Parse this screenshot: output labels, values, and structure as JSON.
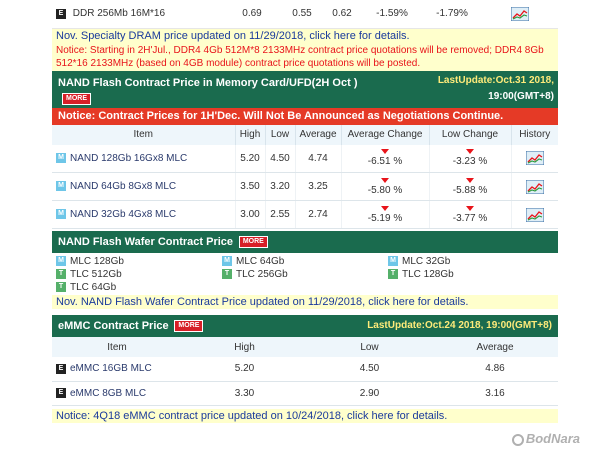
{
  "ddr_row": {
    "tag": "E",
    "name": "DDR 256Mb 16M*16",
    "high": "0.69",
    "low": "0.55",
    "average": "0.62",
    "avg_change": "-1.59%",
    "low_change": "-1.79%"
  },
  "specialty_notice": "Nov. Specialty DRAM price updated on 11/29/2018, click here for details.",
  "ddr4_notice": "Notice: Starting in 2H'Jul., DDR4 4Gb 512M*8 2133MHz contract price quotations will be removed; DDR4 8Gb 512*16 2133MHz (based on 4GB module) contract price quotations will be posted.",
  "nand_card": {
    "title": "NAND Flash Contract Price in Memory Card/UFD(2H Oct )",
    "more": "MORE",
    "last_update": "LastUpdate:Oct.31 2018,",
    "last_update_time": "19:00(GMT+8)",
    "red_notice": "Notice: Contract Prices for 1H'Dec. Will Not Be Announced as Negotiations Continue.",
    "headers": {
      "item": "Item",
      "high": "High",
      "low": "Low",
      "average": "Average",
      "avg_change": "Average Change",
      "low_change": "Low Change",
      "history": "History"
    },
    "rows": [
      {
        "tag": "M",
        "name": "NAND 128Gb 16Gx8 MLC",
        "high": "5.20",
        "low": "4.50",
        "average": "4.74",
        "avg_change": "-6.51 %",
        "low_change": "-3.23 %"
      },
      {
        "tag": "M",
        "name": "NAND 64Gb 8Gx8 MLC",
        "high": "3.50",
        "low": "3.20",
        "average": "3.25",
        "avg_change": "-5.80 %",
        "low_change": "-5.88 %"
      },
      {
        "tag": "M",
        "name": "NAND 32Gb 4Gx8 MLC",
        "high": "3.00",
        "low": "2.55",
        "average": "2.74",
        "avg_change": "-5.19 %",
        "low_change": "-3.77 %"
      }
    ]
  },
  "wafer": {
    "title": "NAND Flash Wafer Contract Price",
    "more": "MORE",
    "items": [
      {
        "tag": "M",
        "label": "MLC 128Gb"
      },
      {
        "tag": "M",
        "label": "MLC 64Gb"
      },
      {
        "tag": "M",
        "label": "MLC 32Gb"
      },
      {
        "tag": "T",
        "label": "TLC 512Gb"
      },
      {
        "tag": "T",
        "label": "TLC 256Gb"
      },
      {
        "tag": "T",
        "label": "TLC 128Gb"
      },
      {
        "tag": "T",
        "label": "TLC 64Gb"
      }
    ],
    "notice": "Nov. NAND Flash Wafer Contract Price updated on 11/29/2018, click here for details."
  },
  "emmc": {
    "title": "eMMC Contract Price",
    "more": "MORE",
    "last_update": "LastUpdate:Oct.24 2018, 19:00(GMT+8)",
    "headers": {
      "item": "Item",
      "high": "High",
      "low": "Low",
      "average": "Average"
    },
    "rows": [
      {
        "tag": "E",
        "name": "eMMC 16GB MLC",
        "high": "5.20",
        "low": "4.50",
        "average": "4.86"
      },
      {
        "tag": "E",
        "name": "eMMC 8GB MLC",
        "high": "3.30",
        "low": "2.90",
        "average": "3.16"
      }
    ],
    "notice": "Notice: 4Q18 eMMC contract price updated on 10/24/2018, click here for details."
  },
  "watermark": "BodNara",
  "colors": {
    "section_green": "#1a6b4e",
    "notice_red": "#e53a26",
    "notice_yellow": "#ffffcc",
    "down_arrow": "#e8141a"
  }
}
